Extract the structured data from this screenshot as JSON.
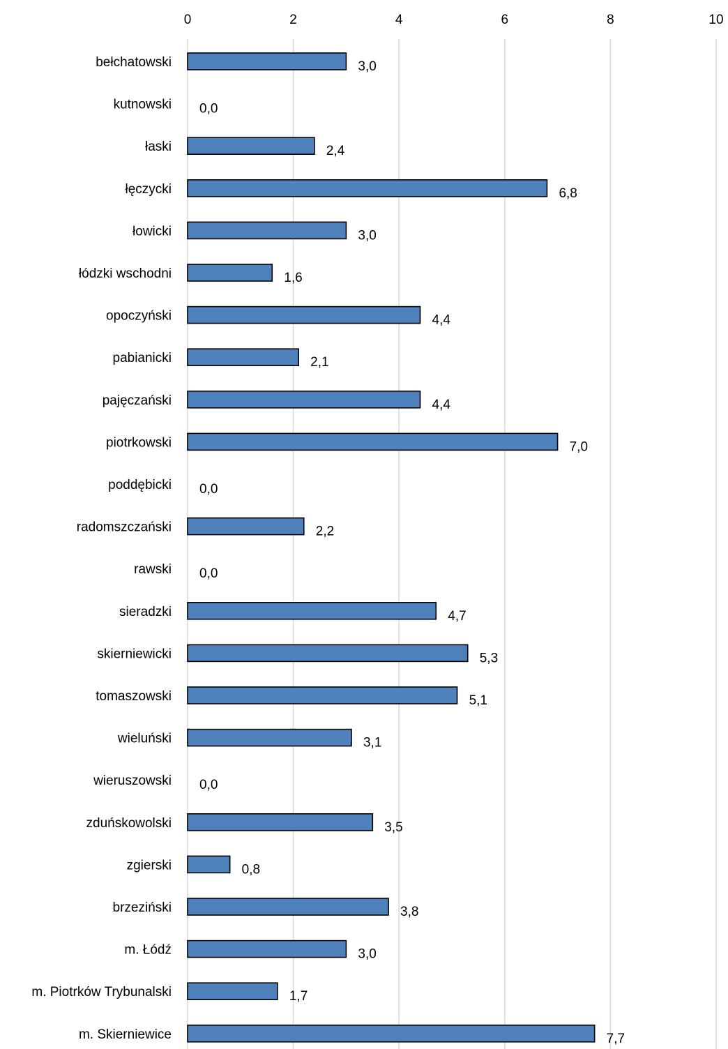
{
  "chart_data": {
    "type": "bar",
    "orientation": "horizontal",
    "title": "",
    "xlabel": "",
    "ylabel": "",
    "xlim": [
      0,
      10
    ],
    "x_ticks": [
      0,
      2,
      4,
      6,
      8,
      10
    ],
    "x_axis_position": "top",
    "grid": true,
    "legend": "none",
    "bar_color": "#4f81bd",
    "bar_edge_color": "#000000",
    "categories": [
      "bełchatowski",
      "kutnowski",
      "łaski",
      "łęczycki",
      "łowicki",
      "łódzki wschodni",
      "opoczyński",
      "pabianicki",
      "pajęczański",
      "piotrkowski",
      "poddębicki",
      "radomszczański",
      "rawski",
      "sieradzki",
      "skierniewicki",
      "tomaszowski",
      "wieluński",
      "wieruszowski",
      "zduńskowolski",
      "zgierski",
      "brzeziński",
      "m. Łódź",
      "m. Piotrków Trybunalski",
      "m. Skierniewice"
    ],
    "values": [
      3.0,
      0.0,
      2.4,
      6.8,
      3.0,
      1.6,
      4.4,
      2.1,
      4.4,
      7.0,
      0.0,
      2.2,
      0.0,
      4.7,
      5.3,
      5.1,
      3.1,
      0.0,
      3.5,
      0.8,
      3.8,
      3.0,
      1.7,
      7.7
    ],
    "data_labels": [
      "3,0",
      "0,0",
      "2,4",
      "6,8",
      "3,0",
      "1,6",
      "4,4",
      "2,1",
      "4,4",
      "7,0",
      "0,0",
      "2,2",
      "0,0",
      "4,7",
      "5,3",
      "5,1",
      "3,1",
      "0,0",
      "3,5",
      "0,8",
      "3,8",
      "3,0",
      "1,7",
      "7,7"
    ]
  }
}
